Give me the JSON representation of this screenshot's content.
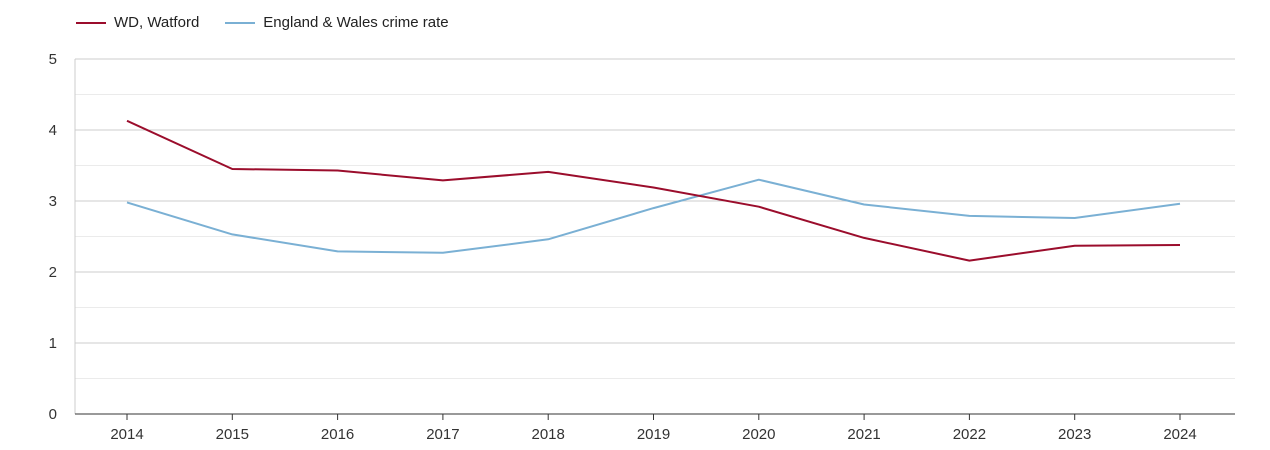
{
  "chart_data": {
    "type": "line",
    "title": "",
    "xlabel": "",
    "ylabel": "",
    "x": [
      "2014",
      "2015",
      "2016",
      "2017",
      "2018",
      "2019",
      "2020",
      "2021",
      "2022",
      "2023",
      "2024"
    ],
    "ylim": [
      0,
      5
    ],
    "yticks": [
      "0",
      "1",
      "2",
      "3",
      "4",
      "5"
    ],
    "grid": true,
    "legend_position": "top-left",
    "series": [
      {
        "name": "WD, Watford",
        "color": "#9b0d2c",
        "values": [
          4.13,
          3.45,
          3.43,
          3.29,
          3.41,
          3.19,
          2.92,
          2.48,
          2.16,
          2.37,
          2.38
        ]
      },
      {
        "name": "England & Wales crime rate",
        "color": "#7ab0d4",
        "values": [
          2.98,
          2.53,
          2.29,
          2.27,
          2.46,
          2.9,
          3.3,
          2.95,
          2.79,
          2.76,
          2.96
        ]
      }
    ]
  }
}
